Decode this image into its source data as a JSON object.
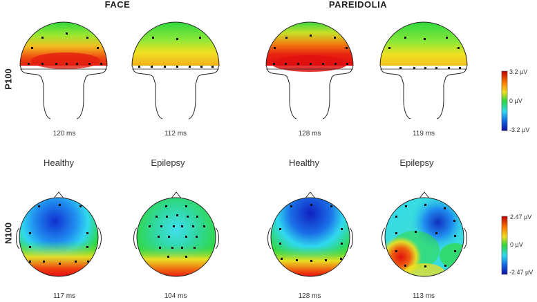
{
  "conditions": {
    "face": "FACE",
    "pareidolia": "PAREIDOLIA"
  },
  "components": {
    "p100": "P100",
    "n100": "N100"
  },
  "groups": [
    "Healthy",
    "Epilepsy",
    "Healthy",
    "Epilepsy"
  ],
  "p100_latencies": [
    "120 ms",
    "112 ms",
    "128 ms",
    "119 ms"
  ],
  "n100_latencies": [
    "117 ms",
    "104 ms",
    "128 ms",
    "113 ms"
  ],
  "colorbars": {
    "p100": {
      "max": "3.2 µV",
      "mid": "0 µV",
      "min": "-3.2 µV"
    },
    "n100": {
      "max": "2.47 µV",
      "mid": "0 µV",
      "min": "-2.47 µV"
    }
  },
  "colors": {
    "red": "#e01010",
    "yellow": "#f2e020",
    "green": "#30d840",
    "cyan": "#30d8f0",
    "blue": "#1030d0"
  }
}
